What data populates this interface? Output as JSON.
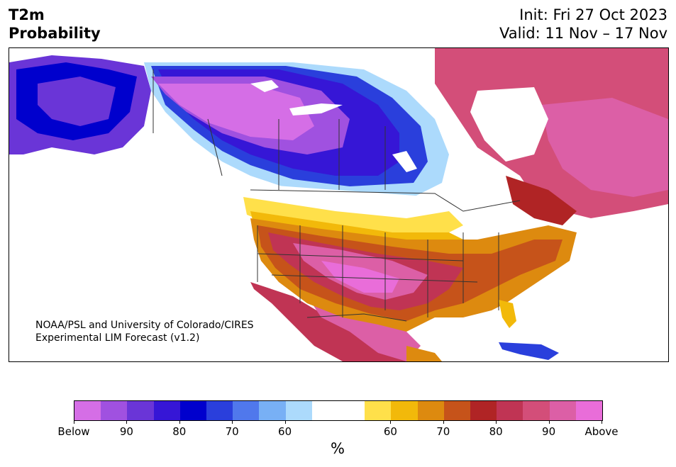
{
  "header": {
    "title_line1": "T2m",
    "title_line2": "Probability",
    "init": "Init: Fri 27 Oct 2023",
    "valid": "Valid: 11 Nov – 17 Nov"
  },
  "map": {
    "credit_line1": "NOAA/PSL and University of Colorado/CIRES",
    "credit_line2": "Experimental LIM Forecast (v1.2)"
  },
  "colorbar": {
    "colors": [
      "#d56ee6",
      "#a051e0",
      "#6a35d7",
      "#3616d6",
      "#0000cd",
      "#2a3fdc",
      "#5078ec",
      "#78b0f5",
      "#acdafc",
      "#ffffff",
      "#ffffff",
      "#ffe04a",
      "#f2b90a",
      "#dd8a0f",
      "#c6531a",
      "#b02425",
      "#c03454",
      "#d34e79",
      "#dc5fa6",
      "#e96dd9"
    ],
    "tick_labels": [
      "Below",
      "90",
      "80",
      "70",
      "60",
      "60",
      "70",
      "80",
      "90",
      "Above"
    ],
    "unit": "%"
  }
}
